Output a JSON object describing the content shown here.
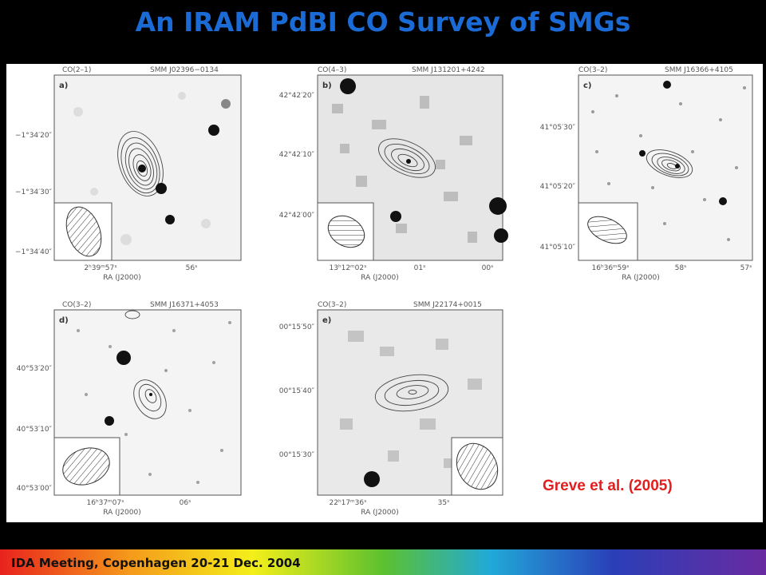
{
  "slide": {
    "title": "An IRAM PdBI CO Survey of SMGs",
    "citation": "Greve et al. (2005)",
    "footer": "IDA Meeting, Copenhagen 20-21 Dec. 2004"
  },
  "panels": [
    {
      "line": "CO(2–1)",
      "source": "SMM J02396−0134",
      "letter": "a)",
      "yticks": [
        "−1°34′20″",
        "−1°34′30″",
        "−1°34′40″"
      ],
      "xticks": [
        "2ʰ39ᵐ57ˢ",
        "56ˢ"
      ],
      "xlabel": "RA (J2000)"
    },
    {
      "line": "CO(4–3)",
      "source": "SMM J131201+4242",
      "letter": "b)",
      "yticks": [
        "42°42′20″",
        "42°42′10″",
        "42°42′00″"
      ],
      "xticks": [
        "13ʰ12ᵐ02ˢ",
        "01ˢ",
        "00ˢ"
      ],
      "xlabel": "RA (J2000)"
    },
    {
      "line": "CO(3–2)",
      "source": "SMM J16366+4105",
      "letter": "c)",
      "yticks": [
        "41°05′30″",
        "41°05′20″",
        "41°05′10″"
      ],
      "xticks": [
        "16ʰ36ᵐ59ˢ",
        "58ˢ",
        "57ˢ"
      ],
      "xlabel": "RA (J2000)"
    },
    {
      "line": "CO(3–2)",
      "source": "SMM J16371+4053",
      "letter": "d)",
      "yticks": [
        "40°53′20″",
        "40°53′10″",
        "40°53′00″"
      ],
      "xticks": [
        "16ʰ37ᵐ07ˢ",
        "06ˢ"
      ],
      "xlabel": "RA (J2000)"
    },
    {
      "line": "CO(3–2)",
      "source": "SMM J22174+0015",
      "letter": "e)",
      "yticks": [
        "00°15′50″",
        "00°15′40″",
        "00°15′30″"
      ],
      "xticks": [
        "22ʰ17ᵐ36ˢ",
        "35ˢ"
      ],
      "xlabel": "RA (J2000)"
    }
  ]
}
